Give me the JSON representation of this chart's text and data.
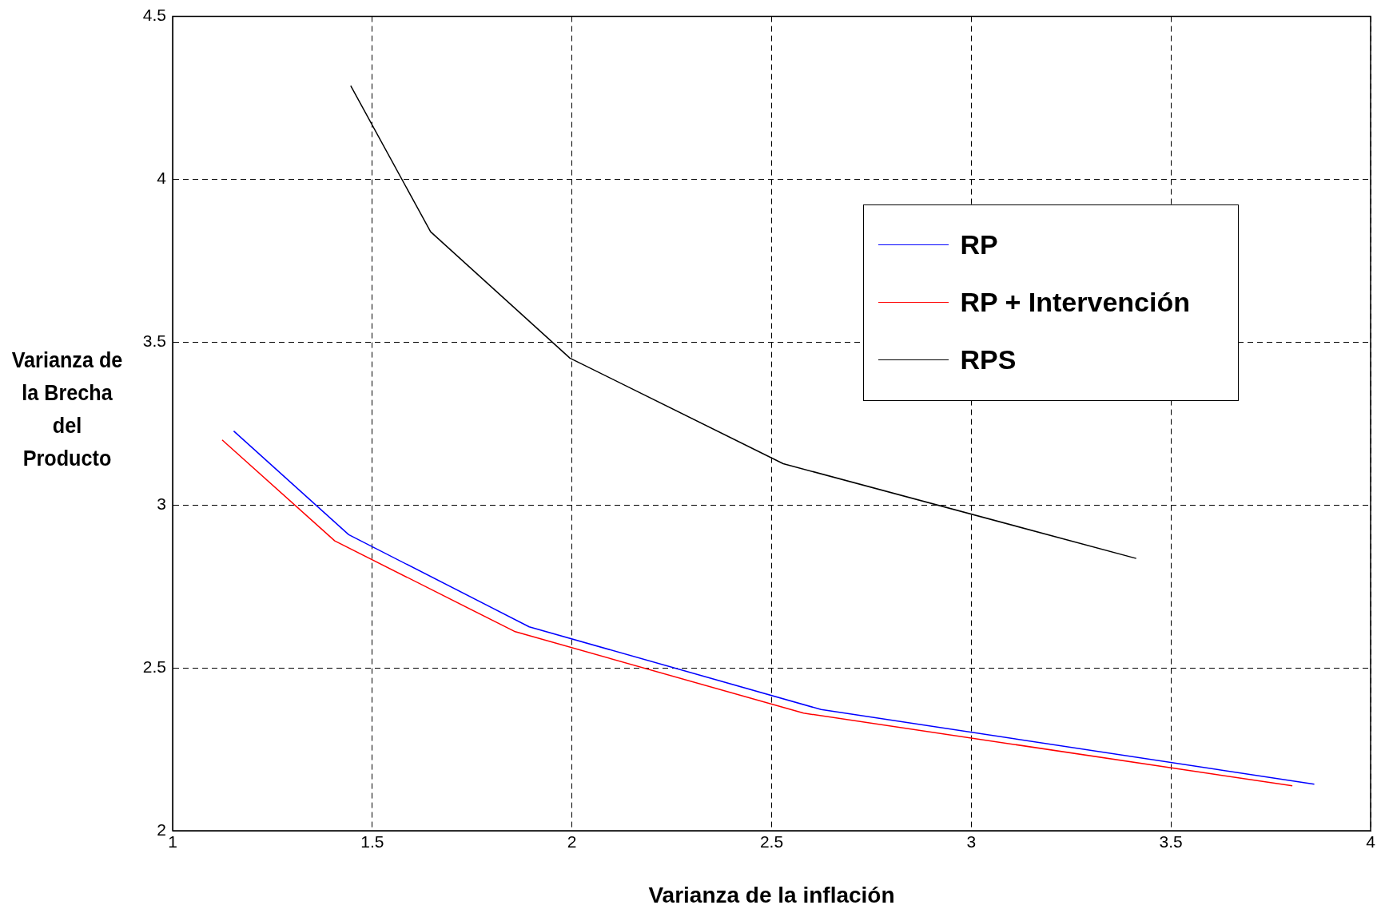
{
  "chart_data": {
    "type": "line",
    "xlabel": "Varianza de la inflación",
    "ylabel": "Varianza de la Brecha del Producto",
    "xlim": [
      1,
      4
    ],
    "xticks": [
      1,
      1.5,
      2,
      2.5,
      3,
      3.5,
      4
    ],
    "ylim": [
      2,
      4.5
    ],
    "yticks": [
      2,
      2.5,
      3,
      3.5,
      4,
      4.5
    ],
    "grid": true,
    "legend": "top right",
    "line_style": "solid",
    "marker": "none",
    "series": [
      {
        "name": "RP",
        "color": "#0000ff",
        "x": [
          1.153,
          1.441,
          1.893,
          2.624,
          3.859
        ],
        "values": [
          3.227,
          2.909,
          2.626,
          2.372,
          2.143
        ]
      },
      {
        "name": "RP + Intervención",
        "color": "#ff0000",
        "x": [
          1.124,
          1.406,
          1.856,
          2.58,
          3.804
        ],
        "values": [
          3.2,
          2.89,
          2.612,
          2.361,
          2.138
        ]
      },
      {
        "name": "RPS",
        "color": "#000000",
        "x": [
          1.446,
          1.646,
          1.995,
          2.529,
          3.413
        ],
        "values": [
          4.287,
          3.839,
          3.451,
          3.127,
          2.836
        ]
      }
    ]
  }
}
